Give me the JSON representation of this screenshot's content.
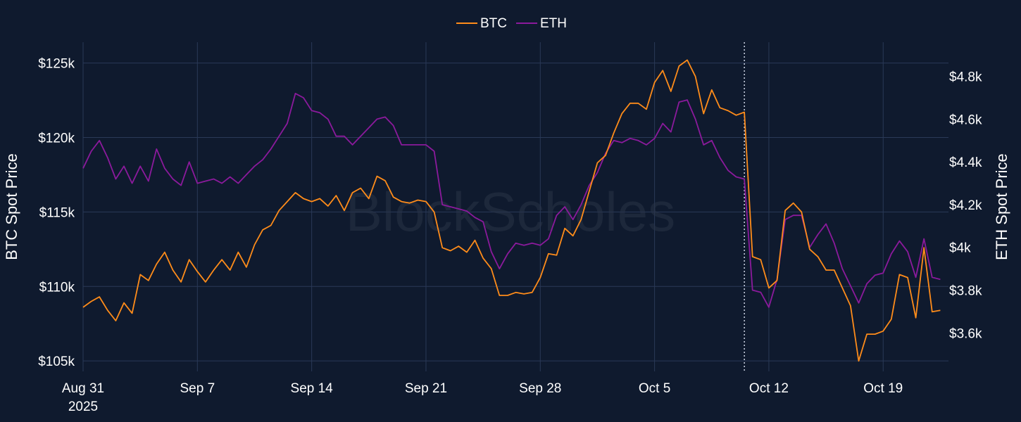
{
  "watermark": "BlockScholes",
  "chart_data": {
    "type": "line",
    "legend": {
      "placement": "top-center",
      "entries": [
        "BTC",
        "ETH"
      ]
    },
    "grid": true,
    "x_axis": {
      "range": [
        "2025-08-31",
        "2025-10-23"
      ],
      "ticks": [
        {
          "date": "2025-08-31",
          "label": "Aug 31",
          "sublabel": "2025"
        },
        {
          "date": "2025-09-07",
          "label": "Sep 7"
        },
        {
          "date": "2025-09-14",
          "label": "Sep 14"
        },
        {
          "date": "2025-09-21",
          "label": "Sep 21"
        },
        {
          "date": "2025-09-28",
          "label": "Sep 28"
        },
        {
          "date": "2025-10-05",
          "label": "Oct 5"
        },
        {
          "date": "2025-10-12",
          "label": "Oct 12"
        },
        {
          "date": "2025-10-19",
          "label": "Oct 19"
        }
      ]
    },
    "y_left": {
      "title": "BTC Spot Price",
      "range": [
        104300,
        126400
      ],
      "ticks": [
        {
          "value": 105000,
          "label": "$105k"
        },
        {
          "value": 110000,
          "label": "$110k"
        },
        {
          "value": 115000,
          "label": "$115k"
        },
        {
          "value": 120000,
          "label": "$120k"
        },
        {
          "value": 125000,
          "label": "$125k"
        }
      ]
    },
    "y_right": {
      "title": "ETH Spot Price",
      "range": [
        3420,
        4960
      ],
      "ticks": [
        {
          "value": 3600,
          "label": "$3.6k"
        },
        {
          "value": 3800,
          "label": "$3.8k"
        },
        {
          "value": 4000,
          "label": "$4k"
        },
        {
          "value": 4200,
          "label": "$4.2k"
        },
        {
          "value": 4400,
          "label": "$4.4k"
        },
        {
          "value": 4600,
          "label": "$4.6k"
        },
        {
          "value": 4800,
          "label": "$4.8k"
        }
      ]
    },
    "annotations": [
      {
        "type": "vertical-dotted-line",
        "x": "2025-10-10 12:00"
      }
    ],
    "series": [
      {
        "name": "BTC",
        "axis": "left",
        "color": "#ff8c1a",
        "points": [
          [
            "2025-08-31 00:00",
            108600
          ],
          [
            "2025-08-31 12:00",
            109000
          ],
          [
            "2025-09-01 00:00",
            109300
          ],
          [
            "2025-09-01 12:00",
            108400
          ],
          [
            "2025-09-02 00:00",
            107700
          ],
          [
            "2025-09-02 12:00",
            108900
          ],
          [
            "2025-09-03 00:00",
            108200
          ],
          [
            "2025-09-03 12:00",
            110800
          ],
          [
            "2025-09-04 00:00",
            110400
          ],
          [
            "2025-09-04 12:00",
            111500
          ],
          [
            "2025-09-05 00:00",
            112300
          ],
          [
            "2025-09-05 12:00",
            111100
          ],
          [
            "2025-09-06 00:00",
            110300
          ],
          [
            "2025-09-06 12:00",
            111800
          ],
          [
            "2025-09-07 00:00",
            111000
          ],
          [
            "2025-09-07 12:00",
            110300
          ],
          [
            "2025-09-08 00:00",
            111100
          ],
          [
            "2025-09-08 12:00",
            111800
          ],
          [
            "2025-09-09 00:00",
            111100
          ],
          [
            "2025-09-09 12:00",
            112300
          ],
          [
            "2025-09-10 00:00",
            111300
          ],
          [
            "2025-09-10 12:00",
            112800
          ],
          [
            "2025-09-11 00:00",
            113800
          ],
          [
            "2025-09-11 12:00",
            114100
          ],
          [
            "2025-09-12 00:00",
            115100
          ],
          [
            "2025-09-12 12:00",
            115700
          ],
          [
            "2025-09-13 00:00",
            116300
          ],
          [
            "2025-09-13 12:00",
            115900
          ],
          [
            "2025-09-14 00:00",
            115700
          ],
          [
            "2025-09-14 12:00",
            115900
          ],
          [
            "2025-09-15 00:00",
            115400
          ],
          [
            "2025-09-15 12:00",
            116100
          ],
          [
            "2025-09-16 00:00",
            115100
          ],
          [
            "2025-09-16 12:00",
            116300
          ],
          [
            "2025-09-17 00:00",
            116600
          ],
          [
            "2025-09-17 12:00",
            115900
          ],
          [
            "2025-09-18 00:00",
            117400
          ],
          [
            "2025-09-18 12:00",
            117100
          ],
          [
            "2025-09-19 00:00",
            116000
          ],
          [
            "2025-09-19 12:00",
            115700
          ],
          [
            "2025-09-20 00:00",
            115600
          ],
          [
            "2025-09-20 12:00",
            115800
          ],
          [
            "2025-09-21 00:00",
            115700
          ],
          [
            "2025-09-21 12:00",
            115000
          ],
          [
            "2025-09-22 00:00",
            112600
          ],
          [
            "2025-09-22 12:00",
            112400
          ],
          [
            "2025-09-23 00:00",
            112700
          ],
          [
            "2025-09-23 12:00",
            112300
          ],
          [
            "2025-09-24 00:00",
            113100
          ],
          [
            "2025-09-24 12:00",
            111900
          ],
          [
            "2025-09-25 00:00",
            111200
          ],
          [
            "2025-09-25 12:00",
            109400
          ],
          [
            "2025-09-26 00:00",
            109400
          ],
          [
            "2025-09-26 12:00",
            109600
          ],
          [
            "2025-09-27 00:00",
            109500
          ],
          [
            "2025-09-27 12:00",
            109600
          ],
          [
            "2025-09-28 00:00",
            110600
          ],
          [
            "2025-09-28 12:00",
            112200
          ],
          [
            "2025-09-29 00:00",
            112100
          ],
          [
            "2025-09-29 12:00",
            113900
          ],
          [
            "2025-09-30 00:00",
            113400
          ],
          [
            "2025-09-30 12:00",
            114500
          ],
          [
            "2025-10-01 00:00",
            116400
          ],
          [
            "2025-10-01 12:00",
            118300
          ],
          [
            "2025-10-02 00:00",
            118800
          ],
          [
            "2025-10-02 12:00",
            120300
          ],
          [
            "2025-10-03 00:00",
            121600
          ],
          [
            "2025-10-03 12:00",
            122300
          ],
          [
            "2025-10-04 00:00",
            122300
          ],
          [
            "2025-10-04 12:00",
            121900
          ],
          [
            "2025-10-05 00:00",
            123700
          ],
          [
            "2025-10-05 12:00",
            124500
          ],
          [
            "2025-10-06 00:00",
            123100
          ],
          [
            "2025-10-06 12:00",
            124800
          ],
          [
            "2025-10-07 00:00",
            125200
          ],
          [
            "2025-10-07 12:00",
            124100
          ],
          [
            "2025-10-08 00:00",
            121600
          ],
          [
            "2025-10-08 12:00",
            123200
          ],
          [
            "2025-10-09 00:00",
            122000
          ],
          [
            "2025-10-09 12:00",
            121800
          ],
          [
            "2025-10-10 00:00",
            121500
          ],
          [
            "2025-10-10 12:00",
            121700
          ],
          [
            "2025-10-11 00:00",
            112000
          ],
          [
            "2025-10-11 12:00",
            111800
          ],
          [
            "2025-10-12 00:00",
            109900
          ],
          [
            "2025-10-12 12:00",
            110400
          ],
          [
            "2025-10-13 00:00",
            115100
          ],
          [
            "2025-10-13 12:00",
            115600
          ],
          [
            "2025-10-14 00:00",
            115000
          ],
          [
            "2025-10-14 12:00",
            112500
          ],
          [
            "2025-10-15 00:00",
            112000
          ],
          [
            "2025-10-15 12:00",
            111100
          ],
          [
            "2025-10-16 00:00",
            111100
          ],
          [
            "2025-10-16 12:00",
            109900
          ],
          [
            "2025-10-17 00:00",
            108700
          ],
          [
            "2025-10-17 12:00",
            105000
          ],
          [
            "2025-10-18 00:00",
            106800
          ],
          [
            "2025-10-18 12:00",
            106800
          ],
          [
            "2025-10-19 00:00",
            107000
          ],
          [
            "2025-10-19 12:00",
            107800
          ],
          [
            "2025-10-20 00:00",
            110800
          ],
          [
            "2025-10-20 12:00",
            110600
          ],
          [
            "2025-10-21 00:00",
            107900
          ],
          [
            "2025-10-21 12:00",
            112600
          ],
          [
            "2025-10-22 00:00",
            108300
          ],
          [
            "2025-10-22 12:00",
            108400
          ]
        ]
      },
      {
        "name": "ETH",
        "axis": "right",
        "color": "#8b1a9c",
        "points": [
          [
            "2025-08-31 00:00",
            4370
          ],
          [
            "2025-08-31 12:00",
            4450
          ],
          [
            "2025-09-01 00:00",
            4500
          ],
          [
            "2025-09-01 12:00",
            4420
          ],
          [
            "2025-09-02 00:00",
            4320
          ],
          [
            "2025-09-02 12:00",
            4380
          ],
          [
            "2025-09-03 00:00",
            4300
          ],
          [
            "2025-09-03 12:00",
            4380
          ],
          [
            "2025-09-04 00:00",
            4310
          ],
          [
            "2025-09-04 12:00",
            4460
          ],
          [
            "2025-09-05 00:00",
            4370
          ],
          [
            "2025-09-05 12:00",
            4320
          ],
          [
            "2025-09-06 00:00",
            4290
          ],
          [
            "2025-09-06 12:00",
            4400
          ],
          [
            "2025-09-07 00:00",
            4300
          ],
          [
            "2025-09-07 12:00",
            4310
          ],
          [
            "2025-09-08 00:00",
            4320
          ],
          [
            "2025-09-08 12:00",
            4300
          ],
          [
            "2025-09-09 00:00",
            4330
          ],
          [
            "2025-09-09 12:00",
            4300
          ],
          [
            "2025-09-10 00:00",
            4340
          ],
          [
            "2025-09-10 12:00",
            4380
          ],
          [
            "2025-09-11 00:00",
            4410
          ],
          [
            "2025-09-11 12:00",
            4460
          ],
          [
            "2025-09-12 00:00",
            4520
          ],
          [
            "2025-09-12 12:00",
            4580
          ],
          [
            "2025-09-13 00:00",
            4720
          ],
          [
            "2025-09-13 12:00",
            4700
          ],
          [
            "2025-09-14 00:00",
            4640
          ],
          [
            "2025-09-14 12:00",
            4630
          ],
          [
            "2025-09-15 00:00",
            4600
          ],
          [
            "2025-09-15 12:00",
            4520
          ],
          [
            "2025-09-16 00:00",
            4520
          ],
          [
            "2025-09-16 12:00",
            4480
          ],
          [
            "2025-09-17 00:00",
            4520
          ],
          [
            "2025-09-17 12:00",
            4560
          ],
          [
            "2025-09-18 00:00",
            4600
          ],
          [
            "2025-09-18 12:00",
            4610
          ],
          [
            "2025-09-19 00:00",
            4570
          ],
          [
            "2025-09-19 12:00",
            4480
          ],
          [
            "2025-09-20 00:00",
            4480
          ],
          [
            "2025-09-20 12:00",
            4480
          ],
          [
            "2025-09-21 00:00",
            4480
          ],
          [
            "2025-09-21 12:00",
            4450
          ],
          [
            "2025-09-22 00:00",
            4200
          ],
          [
            "2025-09-22 12:00",
            4190
          ],
          [
            "2025-09-23 00:00",
            4180
          ],
          [
            "2025-09-23 12:00",
            4170
          ],
          [
            "2025-09-24 00:00",
            4140
          ],
          [
            "2025-09-24 12:00",
            4120
          ],
          [
            "2025-09-25 00:00",
            3980
          ],
          [
            "2025-09-25 12:00",
            3900
          ],
          [
            "2025-09-26 00:00",
            3970
          ],
          [
            "2025-09-26 12:00",
            4020
          ],
          [
            "2025-09-27 00:00",
            4010
          ],
          [
            "2025-09-27 12:00",
            4020
          ],
          [
            "2025-09-28 00:00",
            4010
          ],
          [
            "2025-09-28 12:00",
            4040
          ],
          [
            "2025-09-29 00:00",
            4150
          ],
          [
            "2025-09-29 12:00",
            4190
          ],
          [
            "2025-09-30 00:00",
            4130
          ],
          [
            "2025-09-30 12:00",
            4200
          ],
          [
            "2025-10-01 00:00",
            4290
          ],
          [
            "2025-10-01 12:00",
            4350
          ],
          [
            "2025-10-02 00:00",
            4440
          ],
          [
            "2025-10-02 12:00",
            4500
          ],
          [
            "2025-10-03 00:00",
            4490
          ],
          [
            "2025-10-03 12:00",
            4510
          ],
          [
            "2025-10-04 00:00",
            4500
          ],
          [
            "2025-10-04 12:00",
            4480
          ],
          [
            "2025-10-05 00:00",
            4510
          ],
          [
            "2025-10-05 12:00",
            4580
          ],
          [
            "2025-10-06 00:00",
            4540
          ],
          [
            "2025-10-06 12:00",
            4680
          ],
          [
            "2025-10-07 00:00",
            4690
          ],
          [
            "2025-10-07 12:00",
            4600
          ],
          [
            "2025-10-08 00:00",
            4480
          ],
          [
            "2025-10-08 12:00",
            4500
          ],
          [
            "2025-10-09 00:00",
            4420
          ],
          [
            "2025-10-09 12:00",
            4360
          ],
          [
            "2025-10-10 00:00",
            4330
          ],
          [
            "2025-10-10 12:00",
            4320
          ],
          [
            "2025-10-11 00:00",
            3800
          ],
          [
            "2025-10-11 12:00",
            3790
          ],
          [
            "2025-10-12 00:00",
            3720
          ],
          [
            "2025-10-12 12:00",
            3850
          ],
          [
            "2025-10-13 00:00",
            4130
          ],
          [
            "2025-10-13 12:00",
            4150
          ],
          [
            "2025-10-14 00:00",
            4150
          ],
          [
            "2025-10-14 12:00",
            4000
          ],
          [
            "2025-10-15 00:00",
            4060
          ],
          [
            "2025-10-15 12:00",
            4110
          ],
          [
            "2025-10-16 00:00",
            4020
          ],
          [
            "2025-10-16 12:00",
            3900
          ],
          [
            "2025-10-17 00:00",
            3820
          ],
          [
            "2025-10-17 12:00",
            3740
          ],
          [
            "2025-10-18 00:00",
            3830
          ],
          [
            "2025-10-18 12:00",
            3870
          ],
          [
            "2025-10-19 00:00",
            3880
          ],
          [
            "2025-10-19 12:00",
            3970
          ],
          [
            "2025-10-20 00:00",
            4030
          ],
          [
            "2025-10-20 12:00",
            3980
          ],
          [
            "2025-10-21 00:00",
            3860
          ],
          [
            "2025-10-21 12:00",
            4040
          ],
          [
            "2025-10-22 00:00",
            3860
          ],
          [
            "2025-10-22 12:00",
            3850
          ]
        ]
      }
    ]
  }
}
